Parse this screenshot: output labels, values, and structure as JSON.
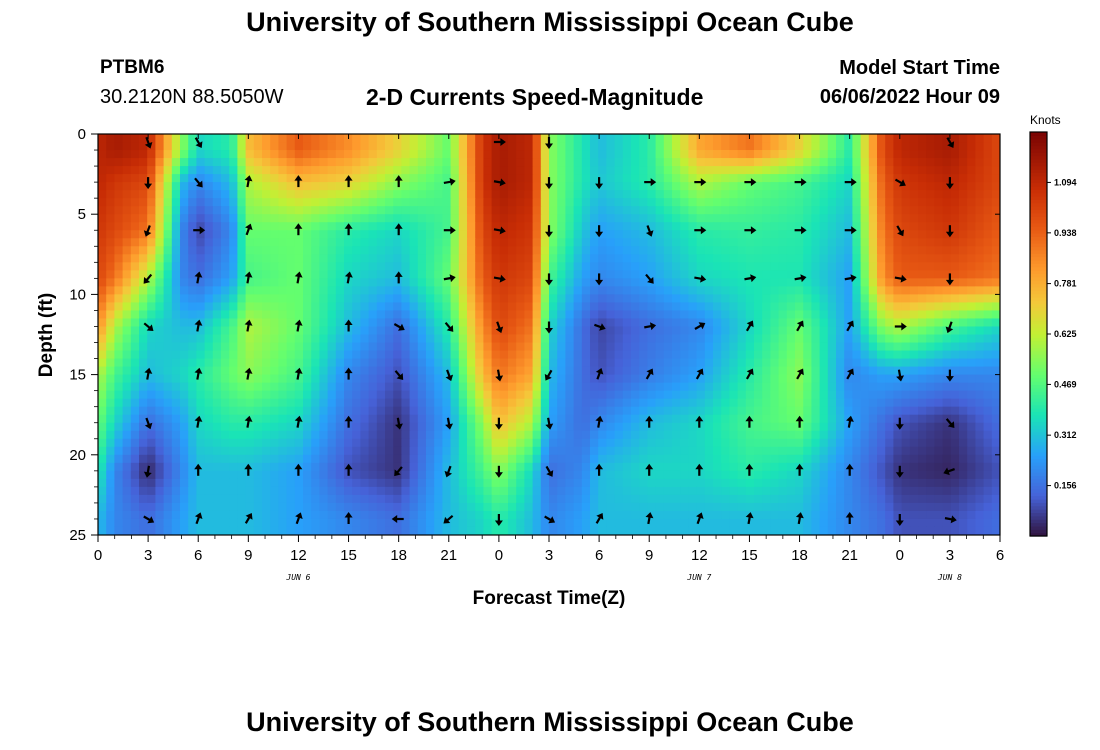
{
  "header": {
    "title": "University of Southern Mississippi Ocean Cube",
    "station": "PTBM6",
    "coordinates": "30.2120N  88.5050W",
    "subtitle": "2-D Currents Speed-Magnitude",
    "model_start_label": "Model Start Time",
    "model_start_value": "06/06/2022 Hour 09"
  },
  "footer": {
    "title": "University of Southern Mississippi Ocean Cube"
  },
  "colorbar": {
    "title": "Knots",
    "ticks": [
      1.094,
      0.938,
      0.781,
      0.625,
      0.469,
      0.312,
      0.156
    ],
    "range": [
      0,
      1.25
    ],
    "colormap": "turbo"
  },
  "chart_data": {
    "type": "heatmap",
    "title": "2-D Currents Speed-Magnitude",
    "xlabel": "Forecast Time(Z)",
    "ylabel": "Depth (ft)",
    "x_tick_labels": [
      "0",
      "3",
      "6",
      "9",
      "12",
      "15",
      "18",
      "21",
      "0",
      "3",
      "6",
      "9",
      "12",
      "15",
      "18",
      "21",
      "0",
      "3",
      "6"
    ],
    "x_range_hours": [
      0,
      54
    ],
    "y_ticks": [
      0,
      5,
      10,
      15,
      20,
      25
    ],
    "y_range_ft": [
      0,
      25
    ],
    "y_inverted": true,
    "day_labels": [
      {
        "text": "JUN 6",
        "hour": 12
      },
      {
        "text": "JUN 7",
        "hour": 36
      },
      {
        "text": "JUN 8",
        "hour": 51
      }
    ],
    "arrow_hours": [
      3,
      6,
      9,
      12,
      15,
      18,
      21,
      24,
      27,
      30,
      33,
      36,
      39,
      42,
      45,
      48,
      51
    ],
    "arrow_depths_ft": [
      0.5,
      3,
      6,
      9,
      12,
      15,
      18,
      21,
      24
    ],
    "speed_knots_by_depth": [
      {
        "depth": 1,
        "hours": [
          0,
          1,
          3,
          5,
          6,
          8,
          9,
          12,
          15,
          18,
          21,
          23,
          24,
          26,
          27,
          29,
          30,
          33,
          36,
          39,
          42,
          45,
          47,
          48,
          51,
          54
        ],
        "values": [
          1.1,
          1.15,
          1.1,
          0.55,
          0.35,
          0.4,
          0.75,
          0.95,
          0.85,
          0.7,
          0.5,
          1.05,
          1.15,
          1.1,
          0.55,
          0.38,
          0.3,
          0.4,
          0.8,
          0.9,
          0.7,
          0.4,
          1.0,
          1.1,
          1.15,
          1.0
        ]
      },
      {
        "depth": 3,
        "hours": [
          0,
          1,
          3,
          5,
          6,
          8,
          9,
          12,
          15,
          18,
          21,
          23,
          24,
          26,
          27,
          29,
          30,
          33,
          36,
          39,
          42,
          45,
          47,
          48,
          51,
          54
        ],
        "values": [
          1.1,
          1.05,
          1.0,
          0.3,
          0.2,
          0.3,
          0.6,
          0.75,
          0.7,
          0.55,
          0.45,
          1.05,
          1.15,
          1.1,
          0.55,
          0.38,
          0.32,
          0.4,
          0.6,
          0.5,
          0.45,
          0.35,
          0.95,
          1.05,
          1.1,
          1.0
        ]
      },
      {
        "depth": 6,
        "hours": [
          0,
          1,
          3,
          5,
          6,
          8,
          9,
          12,
          15,
          18,
          21,
          23,
          24,
          26,
          27,
          29,
          30,
          33,
          36,
          39,
          42,
          45,
          47,
          48,
          51,
          54
        ],
        "values": [
          1.05,
          1.0,
          0.9,
          0.2,
          0.08,
          0.2,
          0.5,
          0.5,
          0.4,
          0.35,
          0.45,
          1.0,
          1.1,
          1.05,
          0.55,
          0.32,
          0.25,
          0.3,
          0.4,
          0.42,
          0.4,
          0.3,
          0.9,
          1.0,
          1.05,
          0.95
        ]
      },
      {
        "depth": 9,
        "hours": [
          0,
          1,
          3,
          5,
          6,
          8,
          9,
          12,
          15,
          18,
          21,
          23,
          24,
          26,
          27,
          29,
          30,
          33,
          36,
          39,
          42,
          45,
          47,
          48,
          51,
          54
        ],
        "values": [
          1.0,
          0.9,
          0.6,
          0.2,
          0.15,
          0.25,
          0.45,
          0.5,
          0.35,
          0.3,
          0.5,
          0.95,
          1.05,
          1.0,
          0.45,
          0.25,
          0.2,
          0.25,
          0.35,
          0.38,
          0.38,
          0.25,
          0.85,
          0.95,
          0.95,
          0.9
        ]
      },
      {
        "depth": 12,
        "hours": [
          0,
          1,
          3,
          5,
          6,
          8,
          9,
          12,
          15,
          18,
          21,
          23,
          24,
          26,
          27,
          29,
          30,
          33,
          36,
          39,
          42,
          45,
          47,
          48,
          51,
          54
        ],
        "values": [
          0.85,
          0.6,
          0.35,
          0.3,
          0.3,
          0.45,
          0.6,
          0.5,
          0.3,
          0.15,
          0.4,
          0.85,
          1.0,
          0.9,
          0.35,
          0.15,
          0.08,
          0.15,
          0.2,
          0.35,
          0.5,
          0.25,
          0.55,
          0.6,
          0.45,
          0.35
        ]
      },
      {
        "depth": 15,
        "hours": [
          0,
          1,
          3,
          5,
          6,
          8,
          9,
          12,
          15,
          18,
          21,
          23,
          24,
          26,
          27,
          29,
          30,
          33,
          36,
          39,
          42,
          45,
          47,
          48,
          51,
          54
        ],
        "values": [
          0.6,
          0.45,
          0.3,
          0.35,
          0.4,
          0.5,
          0.55,
          0.45,
          0.2,
          0.1,
          0.3,
          0.75,
          0.9,
          0.8,
          0.3,
          0.15,
          0.1,
          0.18,
          0.25,
          0.4,
          0.55,
          0.2,
          0.25,
          0.25,
          0.2,
          0.2
        ]
      },
      {
        "depth": 18,
        "hours": [
          0,
          1,
          3,
          5,
          6,
          8,
          9,
          12,
          15,
          18,
          21,
          23,
          24,
          26,
          27,
          29,
          30,
          33,
          36,
          39,
          42,
          45,
          47,
          48,
          51,
          54
        ],
        "values": [
          0.5,
          0.35,
          0.15,
          0.25,
          0.35,
          0.4,
          0.4,
          0.35,
          0.15,
          0.05,
          0.25,
          0.55,
          0.75,
          0.6,
          0.25,
          0.15,
          0.2,
          0.3,
          0.35,
          0.45,
          0.5,
          0.25,
          0.15,
          0.1,
          0.05,
          0.15
        ]
      },
      {
        "depth": 21,
        "hours": [
          0,
          1,
          3,
          5,
          6,
          8,
          9,
          12,
          15,
          18,
          21,
          23,
          24,
          26,
          27,
          29,
          30,
          33,
          36,
          39,
          42,
          45,
          47,
          48,
          51,
          54
        ],
        "values": [
          0.4,
          0.2,
          0.03,
          0.2,
          0.3,
          0.3,
          0.3,
          0.25,
          0.1,
          0.05,
          0.3,
          0.45,
          0.55,
          0.35,
          0.15,
          0.2,
          0.3,
          0.35,
          0.35,
          0.4,
          0.35,
          0.2,
          0.1,
          0.05,
          0.03,
          0.1
        ]
      },
      {
        "depth": 24,
        "hours": [
          0,
          1,
          3,
          5,
          6,
          8,
          9,
          12,
          15,
          18,
          21,
          23,
          24,
          26,
          27,
          29,
          30,
          33,
          36,
          39,
          42,
          45,
          47,
          48,
          51,
          54
        ],
        "values": [
          0.3,
          0.2,
          0.15,
          0.25,
          0.3,
          0.3,
          0.3,
          0.25,
          0.2,
          0.15,
          0.3,
          0.35,
          0.4,
          0.3,
          0.2,
          0.25,
          0.3,
          0.3,
          0.3,
          0.3,
          0.3,
          0.2,
          0.15,
          0.1,
          0.1,
          0.15
        ]
      }
    ],
    "arrow_directions_deg_by_depth": [
      {
        "depth": 0.5,
        "deg": [
          160,
          150,
          null,
          null,
          null,
          null,
          null,
          90,
          180,
          null,
          null,
          null,
          null,
          null,
          null,
          null,
          150
        ]
      },
      {
        "depth": 3,
        "deg": [
          180,
          140,
          10,
          0,
          0,
          0,
          80,
          100,
          180,
          180,
          90,
          90,
          90,
          90,
          90,
          120,
          180
        ]
      },
      {
        "depth": 6,
        "deg": [
          200,
          90,
          20,
          0,
          0,
          0,
          90,
          100,
          180,
          180,
          160,
          90,
          90,
          90,
          90,
          150,
          180
        ]
      },
      {
        "depth": 9,
        "deg": [
          220,
          10,
          10,
          10,
          10,
          0,
          80,
          100,
          180,
          180,
          140,
          100,
          80,
          80,
          80,
          100,
          180
        ]
      },
      {
        "depth": 12,
        "deg": [
          130,
          10,
          10,
          10,
          0,
          120,
          140,
          160,
          180,
          110,
          80,
          60,
          30,
          30,
          30,
          90,
          200
        ]
      },
      {
        "depth": 15,
        "deg": [
          10,
          10,
          10,
          10,
          0,
          140,
          160,
          170,
          210,
          20,
          30,
          30,
          30,
          30,
          30,
          170,
          180
        ]
      },
      {
        "depth": 18,
        "deg": [
          160,
          10,
          10,
          10,
          0,
          170,
          170,
          180,
          170,
          10,
          0,
          0,
          0,
          0,
          10,
          180,
          140
        ]
      },
      {
        "depth": 21,
        "deg": [
          190,
          0,
          0,
          0,
          0,
          220,
          200,
          180,
          150,
          0,
          0,
          0,
          0,
          0,
          0,
          180,
          250
        ]
      },
      {
        "depth": 24,
        "deg": [
          120,
          20,
          30,
          20,
          0,
          270,
          230,
          180,
          120,
          30,
          10,
          20,
          10,
          10,
          0,
          180,
          100
        ]
      }
    ]
  }
}
